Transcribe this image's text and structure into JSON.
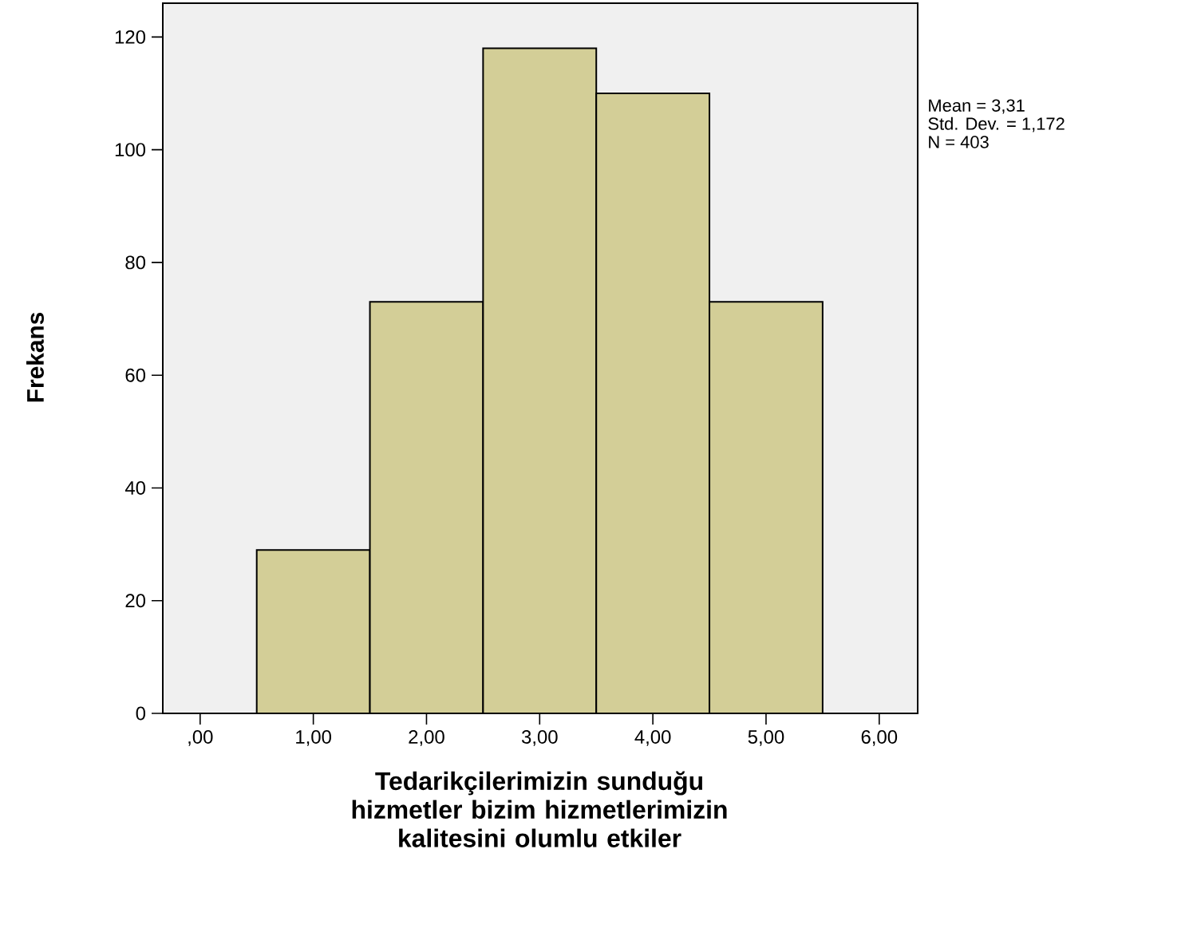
{
  "chart_data": {
    "type": "histogram",
    "xlabel": "Tedarikçilerimizin sunduğu hizmetler bizim hizmetlerimizin kalitesini olumlu etkiler",
    "ylabel": "Frekans",
    "bins": [
      0.5,
      1.5,
      2.5,
      3.5,
      4.5,
      5.5
    ],
    "values": [
      29,
      73,
      118,
      110,
      73
    ],
    "color": "#d3ce97",
    "xlim": [
      -0.33,
      6.34
    ],
    "ylim": [
      0,
      126
    ],
    "xticks": [
      {
        "value": 0,
        "label": ",00"
      },
      {
        "value": 1,
        "label": "1,00"
      },
      {
        "value": 2,
        "label": "2,00"
      },
      {
        "value": 3,
        "label": "3,00"
      },
      {
        "value": 4,
        "label": "4,00"
      },
      {
        "value": 5,
        "label": "5,00"
      },
      {
        "value": 6,
        "label": "6,00"
      }
    ],
    "yticks": [
      0,
      20,
      40,
      60,
      80,
      100,
      120
    ],
    "annotations": [
      "Mean = 3,31",
      "Std. Dev. = 1,172",
      "N = 403"
    ]
  }
}
